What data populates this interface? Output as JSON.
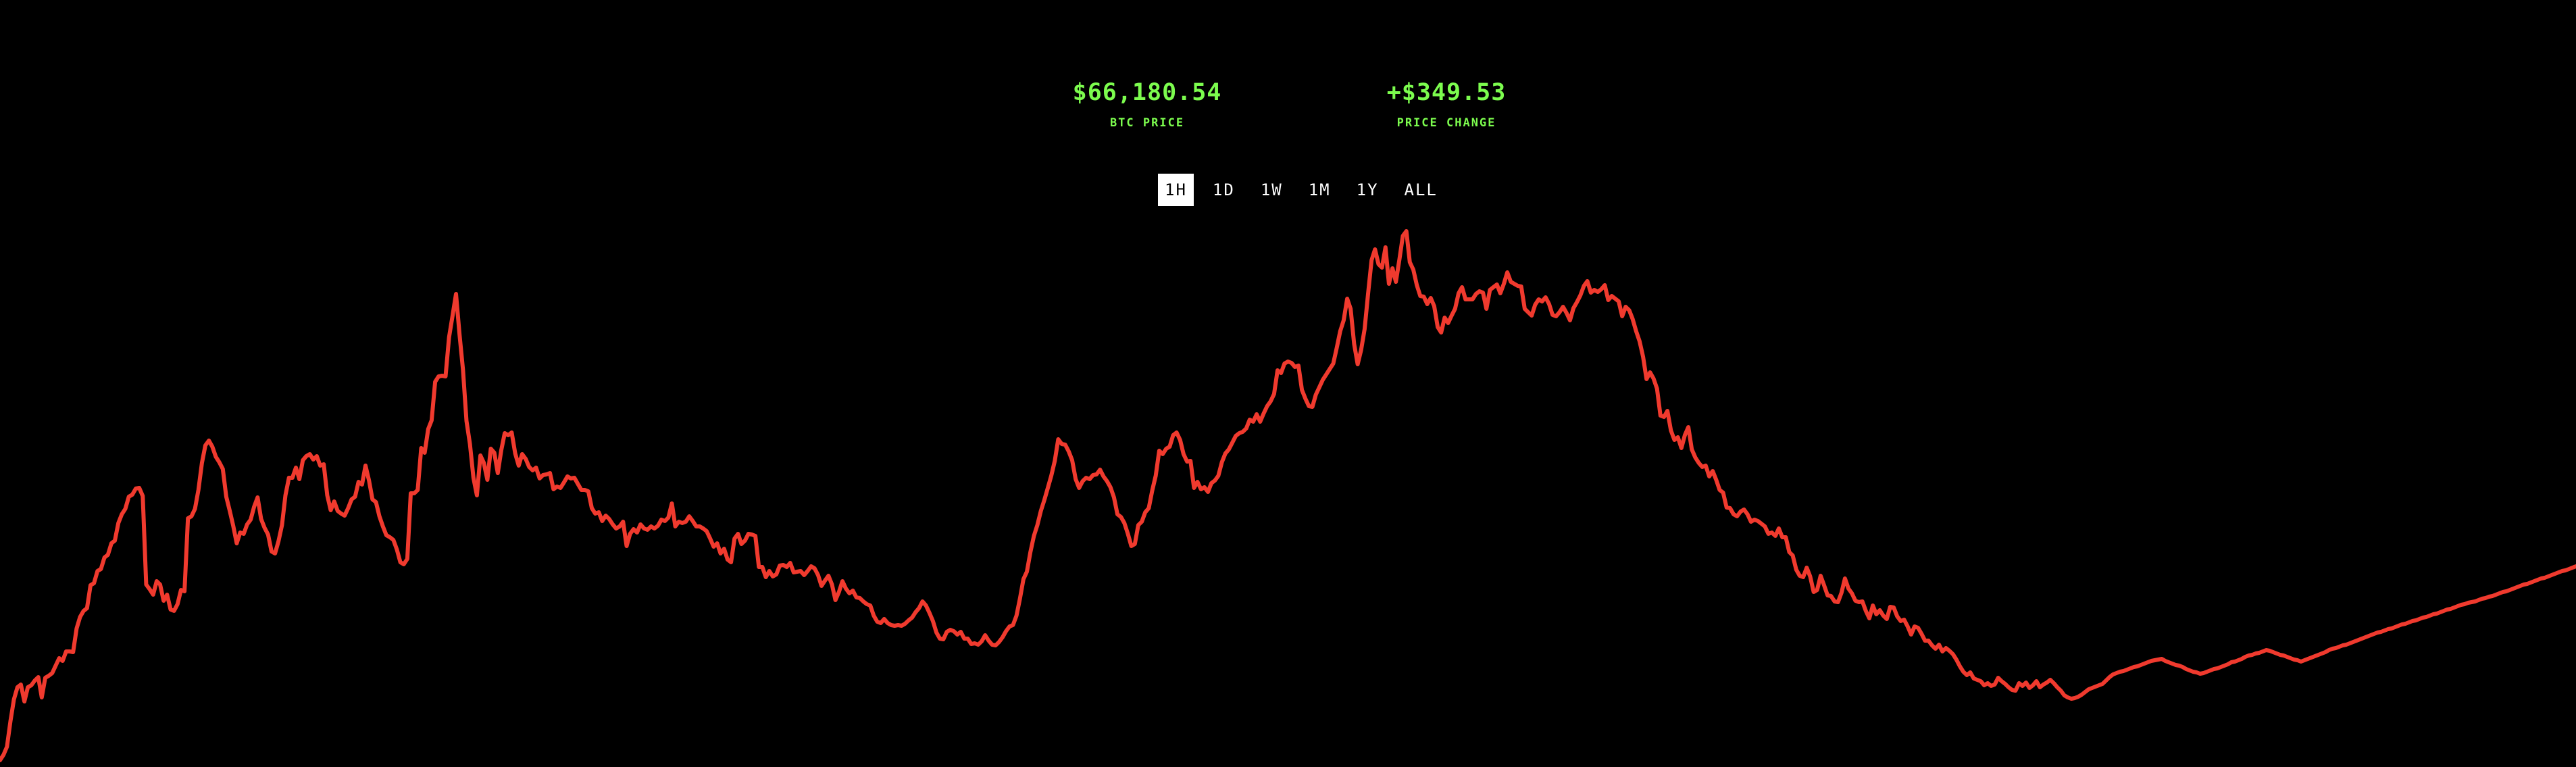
{
  "stats": {
    "price_value": "$66,180.54",
    "price_label": "BTC PRICE",
    "change_value": "+$349.53",
    "change_label": "PRICE CHANGE"
  },
  "colors": {
    "accent_green": "#7CFC4E",
    "line_red": "#F03A2E",
    "background": "#000000"
  },
  "range_options": [
    "1H",
    "1D",
    "1W",
    "1M",
    "1Y",
    "ALL"
  ],
  "selected_range": "1H",
  "chart_data": {
    "type": "line",
    "title": "",
    "xlabel": "",
    "ylabel": "",
    "grid": false,
    "ylim": [
      0,
      1135
    ],
    "series": [
      {
        "values": [
          10,
          18,
          30,
          68,
          100,
          118,
          122,
          97,
          118,
          121,
          128,
          133,
          103,
          132,
          135,
          139,
          150,
          161,
          157,
          171,
          171,
          170,
          205,
          222,
          231,
          235,
          269,
          272,
          290,
          293,
          310,
          314,
          331,
          335,
          361,
          374,
          382,
          400,
          403,
          412,
          413,
          401,
          270,
          263,
          255,
          275,
          270,
          246,
          255,
          233,
          231,
          241,
          262,
          260,
          368,
          371,
          382,
          410,
          450,
          476,
          483,
          474,
          459,
          451,
          441,
          400,
          379,
          357,
          331,
          347,
          345,
          359,
          366,
          385,
          399,
          367,
          354,
          344,
          319,
          316,
          334,
          358,
          402,
          428,
          428,
          443,
          426,
          454,
          460,
          463,
          455,
          460,
          446,
          448,
          402,
          380,
          393,
          379,
          375,
          372,
          383,
          396,
          400,
          422,
          418,
          446,
          424,
          396,
          392,
          371,
          356,
          343,
          340,
          336,
          322,
          303,
          300,
          308,
          405,
          405,
          410,
          472,
          465,
          500,
          513,
          570,
          578,
          579,
          578,
          636,
          668,
          700,
          640,
          588,
          512,
          478,
          428,
          402,
          461,
          450,
          425,
          471,
          465,
          435,
          469,
          494,
          491,
          495,
          464,
          446,
          463,
          456,
          444,
          439,
          443,
          427,
          432,
          433,
          435,
          411,
          415,
          413,
          421,
          430,
          427,
          428,
          419,
          410,
          410,
          408,
          383,
          375,
          377,
          364,
          372,
          367,
          359,
          353,
          356,
          363,
          327,
          345,
          352,
          347,
          359,
          353,
          351,
          356,
          353,
          357,
          366,
          364,
          369,
          390,
          356,
          363,
          361,
          363,
          371,
          364,
          356,
          356,
          353,
          349,
          338,
          326,
          331,
          316,
          323,
          307,
          303,
          338,
          345,
          330,
          335,
          345,
          344,
          342,
          296,
          296,
          281,
          290,
          282,
          285,
          298,
          299,
          296,
          302,
          288,
          289,
          290,
          284,
          290,
          297,
          294,
          284,
          268,
          276,
          283,
          270,
          247,
          259,
          275,
          264,
          257,
          261,
          251,
          250,
          245,
          241,
          239,
          224,
          215,
          213,
          219,
          213,
          210,
          209,
          210,
          209,
          212,
          217,
          221,
          229,
          235,
          245,
          239,
          228,
          216,
          199,
          190,
          189,
          200,
          203,
          201,
          196,
          200,
          190,
          190,
          182,
          183,
          181,
          186,
          195,
          187,
          181,
          180,
          185,
          192,
          201,
          208,
          210,
          224,
          249,
          278,
          289,
          318,
          342,
          358,
          379,
          395,
          413,
          431,
          453,
          485,
          478,
          477,
          467,
          454,
          426,
          413,
          423,
          428,
          426,
          432,
          433,
          440,
          430,
          423,
          414,
          399,
          374,
          370,
          361,
          345,
          327,
          330,
          358,
          363,
          377,
          383,
          409,
          431,
          468,
          463,
          471,
          474,
          491,
          495,
          484,
          463,
          452,
          453,
          413,
          422,
          411,
          414,
          407,
          420,
          424,
          431,
          451,
          464,
          470,
          480,
          490,
          494,
          496,
          501,
          514,
          511,
          522,
          511,
          523,
          534,
          541,
          552,
          587,
          583,
          597,
          600,
          598,
          592,
          594,
          558,
          545,
          534,
          533,
          551,
          562,
          573,
          581,
          589,
          597,
          620,
          645,
          661,
          693,
          678,
          626,
          596,
          617,
          648,
          700,
          750,
          766,
          744,
          739,
          769,
          715,
          738,
          718,
          751,
          786,
          793,
          747,
          736,
          713,
          697,
          696,
          685,
          694,
          682,
          651,
          643,
          665,
          657,
          668,
          678,
          701,
          710,
          692,
          692,
          692,
          700,
          704,
          702,
          678,
          706,
          710,
          714,
          701,
          715,
          732,
          718,
          715,
          712,
          711,
          678,
          673,
          668,
          684,
          692,
          689,
          695,
          685,
          669,
          667,
          673,
          681,
          672,
          661,
          679,
          688,
          698,
          712,
          719,
          702,
          706,
          703,
          707,
          713,
          691,
          697,
          693,
          689,
          667,
          681,
          676,
          663,
          645,
          630,
          607,
          574,
          584,
          575,
          560,
          520,
          518,
          527,
          498,
          484,
          488,
          472,
          491,
          503,
          470,
          458,
          450,
          444,
          446,
          430,
          438,
          425,
          410,
          406,
          384,
          383,
          374,
          371,
          378,
          381,
          374,
          363,
          366,
          364,
          360,
          356,
          345,
          347,
          342,
          353,
          340,
          340,
          318,
          313,
          292,
          283,
          281,
          295,
          282,
          259,
          262,
          283,
          269,
          254,
          253,
          245,
          244,
          258,
          279,
          264,
          257,
          246,
          244,
          245,
          231,
          220,
          239,
          226,
          232,
          224,
          219,
          237,
          236,
          223,
          216,
          218,
          208,
          196,
          208,
          206,
          197,
          187,
          187,
          180,
          175,
          181,
          171,
          176,
          172,
          167,
          159,
          149,
          141,
          136,
          140,
          131,
          129,
          127,
          121,
          124,
          120,
          122,
          132,
          127,
          123,
          118,
          114,
          113,
          124,
          120,
          125,
          117,
          121,
          127,
          118,
          122,
          125,
          129,
          124,
          118,
          113,
          106,
          103,
          101,
          102,
          104,
          107,
          111,
          115,
          117,
          119,
          121,
          123,
          128,
          133,
          137,
          139,
          141,
          142,
          144,
          146,
          148,
          149,
          151,
          153,
          155,
          157,
          158,
          159,
          160,
          157,
          155,
          153,
          151,
          150,
          148,
          145,
          143,
          141,
          140,
          138,
          139,
          141,
          143,
          145,
          146,
          148,
          150,
          152,
          155,
          156,
          158,
          160,
          163,
          165,
          166,
          168,
          169,
          171,
          173,
          172,
          170,
          168,
          166,
          165,
          163,
          161,
          159,
          158,
          156,
          158,
          160,
          162,
          164,
          166,
          168,
          170,
          173,
          175,
          176,
          178,
          180,
          181,
          183,
          185,
          187,
          189,
          191,
          193,
          195,
          197,
          199,
          200,
          202,
          204,
          205,
          207,
          209,
          211,
          212,
          214,
          216,
          217,
          219,
          221,
          222,
          224,
          226,
          227,
          229,
          231,
          233,
          234,
          236,
          238,
          240,
          241,
          243,
          244,
          245,
          247,
          249,
          250,
          252,
          253,
          255,
          257,
          259,
          260,
          262,
          264,
          266,
          268,
          270,
          271,
          273,
          275,
          277,
          279,
          280,
          282,
          284,
          286,
          288,
          290,
          291,
          293,
          295,
          297
        ]
      }
    ]
  }
}
